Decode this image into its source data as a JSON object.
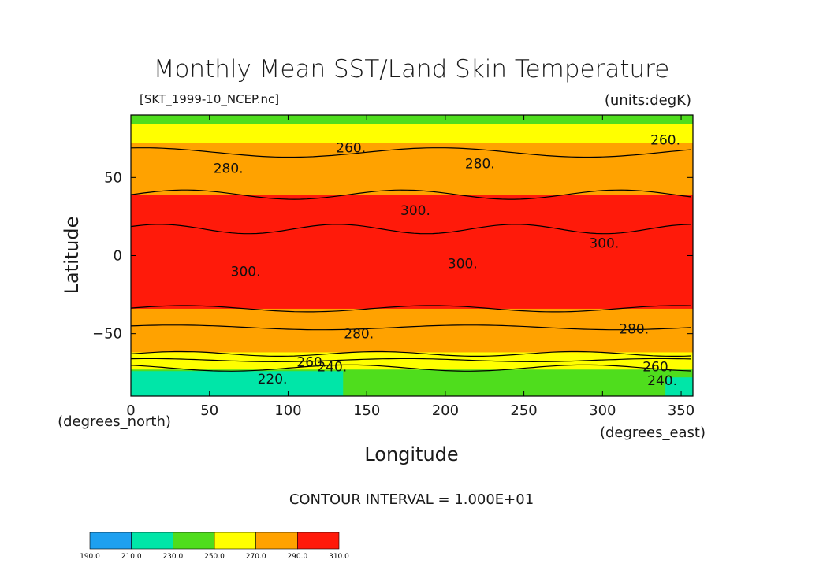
{
  "chart_data": {
    "type": "heatmap",
    "title": "Monthly Mean SST/Land Skin Temperature",
    "subtitle_left": "[SKT_1999-10_NCEP.nc]",
    "subtitle_right": "(units:degK)",
    "xlabel": "Longitude",
    "ylabel": "Latitude",
    "x_units": "(degrees_east)",
    "y_units": "(degrees_north)",
    "xlim": [
      0,
      357.5
    ],
    "ylim": [
      -90,
      90
    ],
    "x_ticks": [
      0,
      50,
      100,
      150,
      200,
      250,
      300,
      350
    ],
    "y_ticks": [
      -50,
      0,
      50
    ],
    "contour_interval_text": "CONTOUR INTERVAL = 1.000E+01",
    "colorbar": {
      "boundaries": [
        "190.0",
        "210.0",
        "230.0",
        "250.0",
        "270.0",
        "290.0",
        "310.0"
      ],
      "colors": [
        "#1ea0f0",
        "#00e6a8",
        "#4fdd1d",
        "#ffff00",
        "#ffa200",
        "#ff1a0a"
      ]
    },
    "contour_labels": [
      {
        "text": "260.",
        "lon": 140,
        "lat": 69
      },
      {
        "text": "280.",
        "lon": 62,
        "lat": 56
      },
      {
        "text": "280.",
        "lon": 222,
        "lat": 59
      },
      {
        "text": "260.",
        "lon": 340,
        "lat": 74
      },
      {
        "text": "300.",
        "lon": 181,
        "lat": 29
      },
      {
        "text": "300.",
        "lon": 73,
        "lat": -10
      },
      {
        "text": "300.",
        "lon": 211,
        "lat": -5
      },
      {
        "text": "300.",
        "lon": 301,
        "lat": 8
      },
      {
        "text": "280.",
        "lon": 145,
        "lat": -50
      },
      {
        "text": "280.",
        "lon": 320,
        "lat": -47
      },
      {
        "text": "260.",
        "lon": 115,
        "lat": -68
      },
      {
        "text": "240.",
        "lon": 128,
        "lat": -71
      },
      {
        "text": "220.",
        "lon": 90,
        "lat": -79
      },
      {
        "text": "260.",
        "lon": 335,
        "lat": -71
      },
      {
        "text": "240.",
        "lon": 338,
        "lat": -80
      }
    ]
  }
}
